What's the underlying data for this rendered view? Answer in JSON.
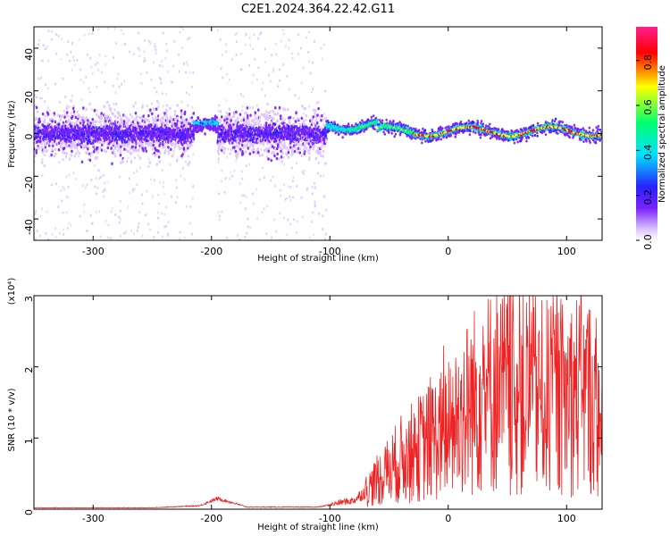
{
  "title": "C2E1.2024.364.22.42.G11",
  "colors": {
    "spectrum_low": "#7b2cff",
    "snr_line": "#ee2222",
    "colorbar": [
      "#ffffff",
      "#dcc6ff",
      "#7a22ff",
      "#2a20ff",
      "#00e0ff",
      "#00ff70",
      "#ffff00",
      "#ff0000",
      "#ff2090"
    ]
  },
  "chart_data": [
    {
      "type": "heatmap",
      "xlabel": "Height of straight line (km)",
      "ylabel": "Frequency (Hz)",
      "xlim": [
        -350,
        130
      ],
      "ylim": [
        -50,
        50
      ],
      "xticks": [
        -300,
        -200,
        -100,
        0,
        100
      ],
      "yticks": [
        -40,
        -20,
        0,
        20,
        40
      ],
      "colorbar": {
        "label": "Normalized spectral amplitude",
        "range": [
          0,
          0.95
        ],
        "ticks": [
          0.0,
          0.2,
          0.4,
          0.6,
          0.8
        ]
      },
      "regions": [
        {
          "x_range": [
            -350,
            -215
          ],
          "frequency_spread_hz": [
            -50,
            50
          ],
          "amplitude": "low"
        },
        {
          "x_range": [
            -215,
            -195
          ],
          "frequency_center_hz": 5,
          "amplitude": "medium"
        },
        {
          "x_range": [
            -195,
            -103
          ],
          "frequency_spread_hz": [
            -50,
            50
          ],
          "amplitude": "low"
        },
        {
          "x_range": [
            -103,
            130
          ],
          "frequency_center_hz": 1,
          "frequency_width_hz": 6,
          "amplitude": "high"
        }
      ]
    },
    {
      "type": "line",
      "xlabel": "Height of straight line (km)",
      "ylabel": "SNR (10 * v/v)",
      "y_multiplier": "(x10⁴)",
      "xlim": [
        -350,
        130
      ],
      "ylim": [
        0,
        3
      ],
      "xticks": [
        -300,
        -200,
        -100,
        0,
        100
      ],
      "yticks": [
        0,
        1,
        2,
        3
      ],
      "series": [
        {
          "x": [
            -350,
            -300,
            -250,
            -210,
            -195,
            -180,
            -170,
            -110,
            -100,
            -90,
            -80,
            -70,
            -60,
            -50,
            -40,
            -30,
            -20,
            -10,
            0,
            10,
            20,
            30,
            40,
            50,
            60,
            70,
            80,
            90,
            100,
            110,
            120,
            130
          ],
          "y": [
            0.02,
            0.02,
            0.02,
            0.05,
            0.15,
            0.08,
            0.03,
            0.03,
            0.06,
            0.1,
            0.12,
            0.25,
            0.4,
            0.55,
            0.7,
            0.8,
            0.9,
            1.0,
            1.1,
            1.3,
            1.5,
            1.6,
            1.7,
            1.65,
            1.6,
            1.65,
            1.55,
            1.6,
            1.55,
            1.65,
            1.6,
            1.0
          ]
        }
      ]
    }
  ]
}
